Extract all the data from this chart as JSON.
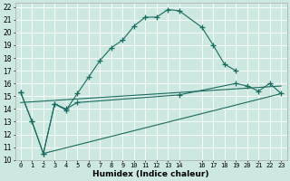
{
  "xlabel": "Humidex (Indice chaleur)",
  "xlim": [
    -0.5,
    23.5
  ],
  "ylim": [
    10,
    22.3
  ],
  "yticks": [
    10,
    11,
    12,
    13,
    14,
    15,
    16,
    17,
    18,
    19,
    20,
    21,
    22
  ],
  "xtick_positions": [
    0,
    1,
    2,
    3,
    4,
    5,
    6,
    7,
    8,
    9,
    10,
    11,
    12,
    13,
    14,
    16,
    17,
    18,
    19,
    20,
    21,
    22,
    23
  ],
  "xtick_labels": [
    "0",
    "1",
    "2",
    "3",
    "4",
    "5",
    "6",
    "7",
    "8",
    "9",
    "10",
    "11",
    "12",
    "13",
    "14",
    "16",
    "17",
    "18",
    "19",
    "20",
    "21",
    "22",
    "23"
  ],
  "bg_color": "#cce8e0",
  "grid_color": "#ffffff",
  "line_color": "#1a6b60",
  "line1_x": [
    0,
    1,
    2,
    3,
    4,
    5,
    6,
    7,
    8,
    9,
    10,
    11,
    12,
    13,
    14,
    16,
    17,
    18,
    19
  ],
  "line1_y": [
    15.3,
    13.0,
    10.5,
    14.4,
    13.9,
    15.2,
    16.5,
    17.8,
    18.8,
    19.4,
    20.5,
    21.2,
    21.2,
    21.8,
    21.7,
    20.4,
    19.0,
    17.5,
    17.0
  ],
  "line2_x": [
    0,
    1,
    2,
    3,
    4,
    5,
    14,
    19,
    20,
    21,
    22,
    23
  ],
  "line2_y": [
    15.3,
    13.0,
    10.5,
    14.4,
    14.0,
    14.5,
    15.1,
    16.0,
    15.8,
    15.4,
    16.0,
    15.2
  ],
  "line3_x": [
    2,
    23
  ],
  "line3_y": [
    10.5,
    15.2
  ],
  "line4_x": [
    0,
    23
  ],
  "line4_y": [
    14.5,
    15.8
  ]
}
